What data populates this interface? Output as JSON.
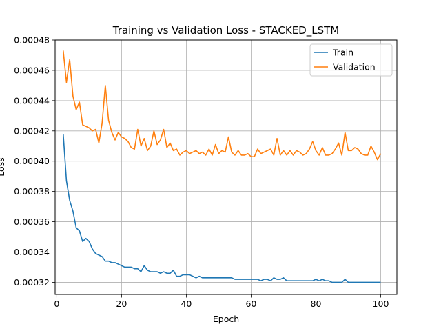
{
  "chart_data": {
    "type": "line",
    "title": "Training vs Validation Loss - STACKED_LSTM",
    "xlabel": "Epoch",
    "ylabel": "Loss",
    "xlim": [
      -0.5,
      105
    ],
    "ylim": [
      0.000312,
      0.00048
    ],
    "xticks": [
      0,
      20,
      40,
      60,
      80,
      100
    ],
    "yticks": [
      0.00032,
      0.00034,
      0.00036,
      0.00038,
      0.0004,
      0.00042,
      0.00044,
      0.00046,
      0.00048
    ],
    "ytick_labels": [
      "0.00032",
      "0.00034",
      "0.00036",
      "0.00038",
      "0.00040",
      "0.00042",
      "0.00044",
      "0.00046",
      "0.00048"
    ],
    "grid": true,
    "legend_position": "top-right",
    "x_start": 2,
    "series": [
      {
        "name": "Train",
        "color": "#1f77b4",
        "values": [
          0.000418,
          0.000387,
          0.000374,
          0.000367,
          0.000356,
          0.000354,
          0.000347,
          0.000349,
          0.000347,
          0.000342,
          0.000339,
          0.000338,
          0.000337,
          0.000334,
          0.000334,
          0.000333,
          0.000333,
          0.000332,
          0.000331,
          0.00033,
          0.00033,
          0.00033,
          0.000329,
          0.000329,
          0.000327,
          0.000331,
          0.000328,
          0.000327,
          0.000327,
          0.000327,
          0.000326,
          0.000327,
          0.000326,
          0.000326,
          0.000328,
          0.000324,
          0.000324,
          0.000325,
          0.000325,
          0.000325,
          0.000324,
          0.000323,
          0.000324,
          0.000323,
          0.000323,
          0.000323,
          0.000323,
          0.000323,
          0.000323,
          0.000323,
          0.000323,
          0.000323,
          0.000323,
          0.000322,
          0.000322,
          0.000322,
          0.000322,
          0.000322,
          0.000322,
          0.000322,
          0.000322,
          0.000321,
          0.000322,
          0.000322,
          0.000321,
          0.000323,
          0.000322,
          0.000322,
          0.000323,
          0.000321,
          0.000321,
          0.000321,
          0.000321,
          0.000321,
          0.000321,
          0.000321,
          0.000321,
          0.000321,
          0.000322,
          0.000321,
          0.000322,
          0.000321,
          0.000321,
          0.00032,
          0.00032,
          0.00032,
          0.00032,
          0.000322,
          0.00032,
          0.00032,
          0.00032,
          0.00032,
          0.00032,
          0.00032,
          0.00032,
          0.00032,
          0.00032,
          0.00032,
          0.00032
        ]
      },
      {
        "name": "Validation",
        "color": "#ff7f0e",
        "values": [
          0.000473,
          0.000452,
          0.000467,
          0.000443,
          0.000434,
          0.000439,
          0.000424,
          0.000423,
          0.000422,
          0.00042,
          0.000421,
          0.000412,
          0.000425,
          0.00045,
          0.000427,
          0.000419,
          0.000414,
          0.000419,
          0.000416,
          0.000415,
          0.000413,
          0.000409,
          0.000408,
          0.000421,
          0.00041,
          0.000415,
          0.000407,
          0.00041,
          0.00042,
          0.000411,
          0.000414,
          0.000421,
          0.000409,
          0.000412,
          0.000407,
          0.000408,
          0.000404,
          0.000406,
          0.000407,
          0.000405,
          0.000406,
          0.000407,
          0.000405,
          0.000406,
          0.000404,
          0.000408,
          0.000404,
          0.000411,
          0.000405,
          0.000407,
          0.000406,
          0.000416,
          0.000406,
          0.000404,
          0.000407,
          0.000404,
          0.000404,
          0.000405,
          0.000403,
          0.000403,
          0.000408,
          0.000405,
          0.000406,
          0.000407,
          0.000408,
          0.000404,
          0.000415,
          0.000404,
          0.000407,
          0.000404,
          0.000407,
          0.000404,
          0.000407,
          0.000406,
          0.000404,
          0.000405,
          0.000408,
          0.000413,
          0.000407,
          0.000404,
          0.000409,
          0.000404,
          0.000404,
          0.000405,
          0.000408,
          0.000412,
          0.000404,
          0.000419,
          0.000407,
          0.000407,
          0.000409,
          0.000408,
          0.000405,
          0.000404,
          0.000404,
          0.00041,
          0.000406,
          0.000401,
          0.000405
        ]
      }
    ]
  }
}
